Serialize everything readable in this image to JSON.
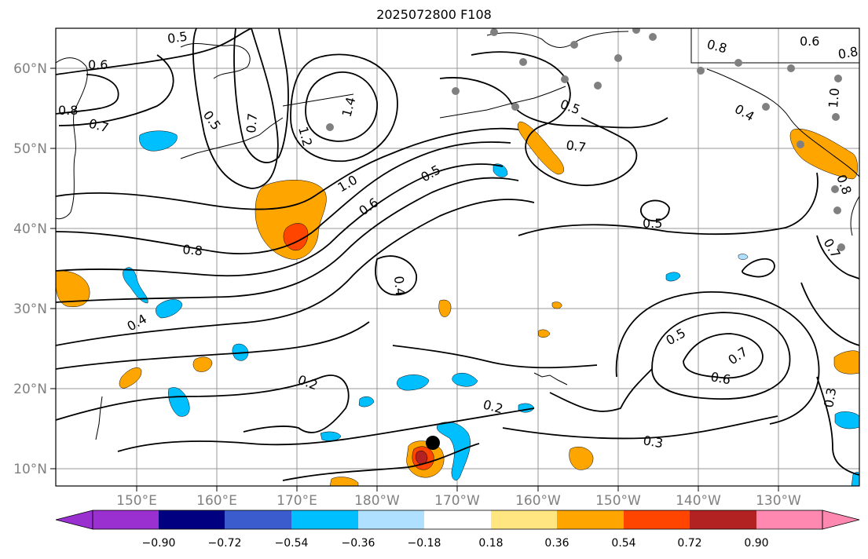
{
  "title": "2025072800 F108",
  "lat_labels": [
    "60°N",
    "50°N",
    "40°N",
    "30°N",
    "20°N",
    "10°N"
  ],
  "lon_labels": [
    "150°E",
    "160°E",
    "170°E",
    "180°W",
    "170°W",
    "160°W",
    "150°W",
    "140°W",
    "130°W"
  ],
  "contour_labels": [
    "0.5",
    "0.6",
    "0.8",
    "0.7",
    "0.5",
    "0.7",
    "1.2",
    "1.4",
    "1.0",
    "0.6",
    "0.5",
    "0.8",
    "0.4",
    "0.4",
    "0.2",
    "0.2",
    "0.3",
    "0.5",
    "0.7",
    "0.6",
    "0.5",
    "0.7",
    "0.8",
    "0.6",
    "0.8",
    "0.4",
    "0.5",
    "0.8",
    "0.7",
    "1.0",
    "0.3"
  ],
  "colorbar": {
    "ticks": [
      "−0.90",
      "−0.72",
      "−0.54",
      "−0.36",
      "−0.18",
      "0.18",
      "0.36",
      "0.54",
      "0.72",
      "0.90"
    ],
    "colors": [
      "#9b30d0",
      "#000080",
      "#3a5ccc",
      "#00bfff",
      "#b0e0ff",
      "#ffffff",
      "#ffe680",
      "#ffa500",
      "#ff4500",
      "#b22222",
      "#ff88b0"
    ]
  },
  "colors": {
    "positive_1": "#ffa500",
    "positive_2": "#ff4500",
    "positive_3": "#b22222",
    "negative_1": "#00bfff",
    "negative_2": "#b0e0ff",
    "contour": "#000000",
    "station_dot": "#808080",
    "storm_marker": "#000000"
  },
  "storm_center": {
    "lat": 13.4,
    "lon": -173.5
  }
}
